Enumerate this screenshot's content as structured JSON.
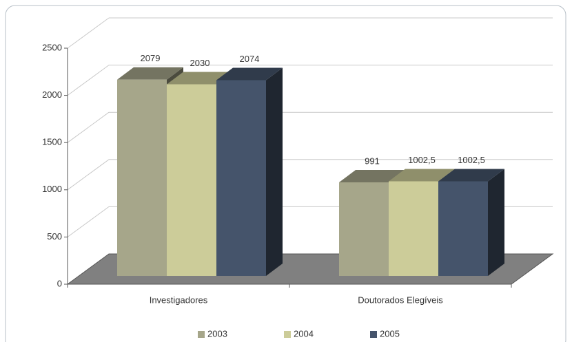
{
  "chart_data": {
    "type": "bar3d",
    "categories": [
      "Investigadores",
      "Doutorados Elegíveis"
    ],
    "series": [
      {
        "name": "2003",
        "color": "#a6a68a",
        "values": [
          2079,
          991
        ],
        "value_labels": [
          "2079",
          "991"
        ]
      },
      {
        "name": "2004",
        "color": "#cccc99",
        "values": [
          2030,
          1002.5
        ],
        "value_labels": [
          "2030",
          "1002,5"
        ]
      },
      {
        "name": "2005",
        "color": "#45546b",
        "values": [
          2074,
          1002.5
        ],
        "value_labels": [
          "2074",
          "1002,5"
        ]
      }
    ],
    "ylim": [
      0,
      2500
    ],
    "yticks": [
      0,
      500,
      1000,
      1500,
      2000,
      2500
    ],
    "grid": true,
    "legend": "bottom"
  }
}
